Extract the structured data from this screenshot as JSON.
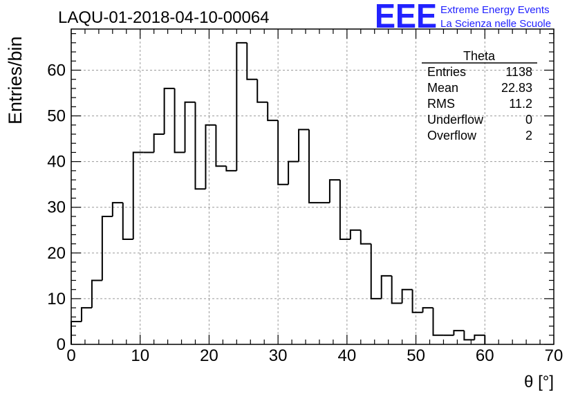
{
  "colors": {
    "axis": "#000000",
    "grid": "#999999",
    "logo": "#2222ff",
    "background": "#ffffff"
  },
  "logo": {
    "mark": "EEE",
    "line1": "Extreme Energy Events",
    "line2": "La Scienza nelle Scuole"
  },
  "stats": {
    "title": "Theta",
    "rows": [
      {
        "label": "Entries",
        "value": "1138"
      },
      {
        "label": "Mean",
        "value": "22.83"
      },
      {
        "label": "RMS",
        "value": "11.2"
      },
      {
        "label": "Underflow",
        "value": "0"
      },
      {
        "label": "Overflow",
        "value": "2"
      }
    ]
  },
  "chart_data": {
    "type": "histogram",
    "title": "LAQU-01-2018-04-10-00064",
    "xlabel": "θ [°]",
    "ylabel": "Entries/bin",
    "xlim": [
      0,
      70
    ],
    "ylim": [
      0,
      69
    ],
    "bin_width": 1.5,
    "bin_edges_start": 0,
    "values": [
      5,
      8,
      14,
      28,
      31,
      23,
      42,
      42,
      46,
      56,
      42,
      53,
      34,
      48,
      39,
      38,
      66,
      58,
      53,
      49,
      35,
      40,
      47,
      31,
      31,
      36,
      23,
      25,
      22,
      10,
      15,
      9,
      12,
      7,
      8,
      2,
      2,
      3,
      1,
      2
    ],
    "x_ticks": [
      0,
      10,
      20,
      30,
      40,
      50,
      60,
      70
    ],
    "y_ticks": [
      0,
      10,
      20,
      30,
      40,
      50,
      60
    ],
    "grid": true,
    "legend": "none"
  }
}
